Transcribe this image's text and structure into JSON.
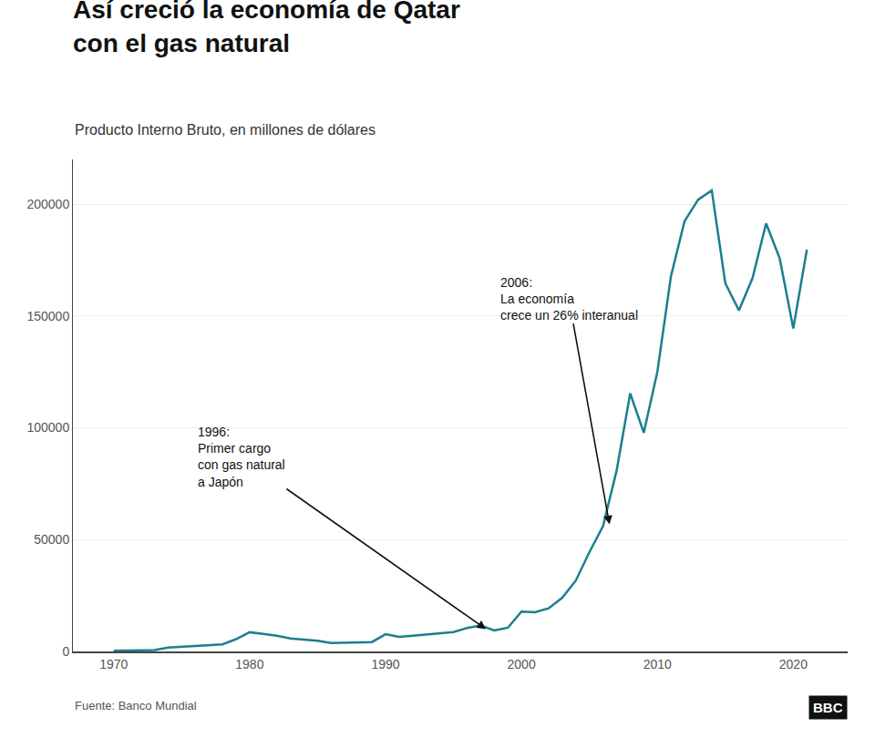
{
  "chart_data": {
    "type": "line",
    "title": "Así creció la economía de Qatar\ncon el gas natural",
    "subtitle": "Producto Interno Bruto, en millones de dólares",
    "source": "Fuente: Banco Mundial",
    "logo": "BBC",
    "color": "#1a7f8e",
    "x": [
      1970,
      1971,
      1972,
      1973,
      1974,
      1975,
      1976,
      1977,
      1978,
      1979,
      1980,
      1981,
      1982,
      1983,
      1984,
      1985,
      1986,
      1987,
      1988,
      1989,
      1990,
      1991,
      1992,
      1993,
      1994,
      1995,
      1996,
      1997,
      1998,
      1999,
      2000,
      2001,
      2002,
      2003,
      2004,
      2005,
      2006,
      2007,
      2008,
      2009,
      2010,
      2011,
      2012,
      2013,
      2014,
      2015,
      2016,
      2017,
      2018,
      2019,
      2020,
      2021
    ],
    "values": [
      330,
      370,
      420,
      620,
      1700,
      2100,
      2600,
      3000,
      3200,
      5500,
      8600,
      7800,
      7000,
      5800,
      5400,
      4800,
      3800,
      3900,
      3900,
      4200,
      7700,
      6500,
      7000,
      7500,
      8000,
      8700,
      10500,
      11600,
      9400,
      10600,
      17800,
      17500,
      19300,
      24000,
      31700,
      44400,
      56000,
      80800,
      115400,
      97800,
      125100,
      167800,
      192400,
      202000,
      206200,
      164600,
      152500,
      166900,
      191400,
      175800,
      144400,
      179700
    ],
    "xlim": [
      1967,
      2024
    ],
    "ylim": [
      0,
      220000
    ],
    "xticks": [
      1970,
      1980,
      1990,
      2000,
      2010,
      2020
    ],
    "yticks": [
      0,
      50000,
      100000,
      150000,
      200000
    ],
    "grid": true,
    "annotations": [
      {
        "text": "1996:\nPrimer cargo\ncon gas natural\na Japón",
        "x": 1997.5,
        "y": 9500
      },
      {
        "text": "2006:\nLa economía\ncrece un 26% interanual",
        "x": 2006.5,
        "y": 56000
      }
    ]
  }
}
